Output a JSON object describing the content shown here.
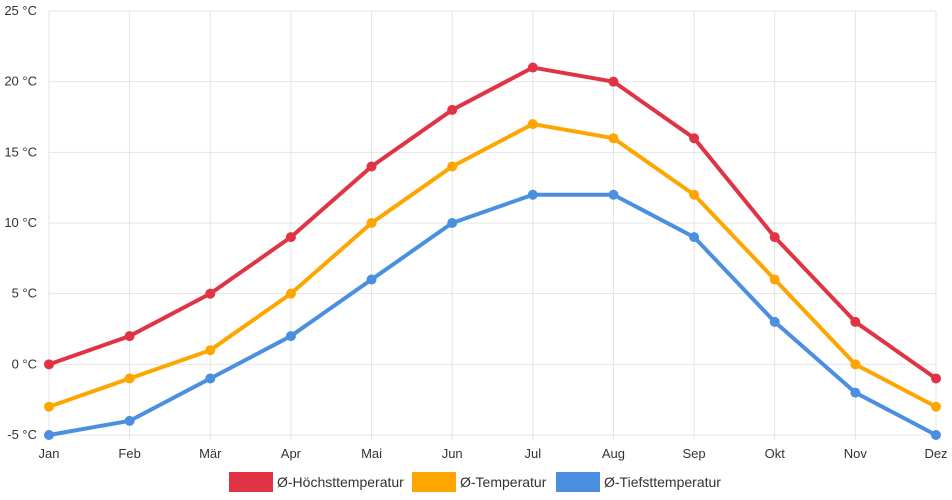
{
  "chart_data": {
    "type": "line",
    "title": "",
    "xlabel": "",
    "ylabel": "",
    "categories": [
      "Jan",
      "Feb",
      "Mär",
      "Apr",
      "Mai",
      "Jun",
      "Jul",
      "Aug",
      "Sep",
      "Okt",
      "Nov",
      "Dez"
    ],
    "y_ticks": [
      -5,
      0,
      5,
      10,
      15,
      20,
      25
    ],
    "y_unit": "°C",
    "ylim": [
      -5,
      25
    ],
    "grid": true,
    "legend_position": "bottom",
    "series": [
      {
        "name": "Ø-Höchsttemperatur",
        "color": "#e03444",
        "values": [
          0,
          2,
          5,
          9,
          14,
          18,
          21,
          20,
          16,
          9,
          3,
          -1
        ]
      },
      {
        "name": "Ø-Temperatur",
        "color": "#ffa500",
        "values": [
          -3,
          -1,
          1,
          5,
          10,
          14,
          17,
          16,
          12,
          6,
          0,
          -3
        ]
      },
      {
        "name": "Ø-Tiefsttemperatur",
        "color": "#4a8fe0",
        "values": [
          -5,
          -4,
          -1,
          2,
          6,
          10,
          12,
          12,
          9,
          3,
          -2,
          -5
        ]
      }
    ]
  }
}
